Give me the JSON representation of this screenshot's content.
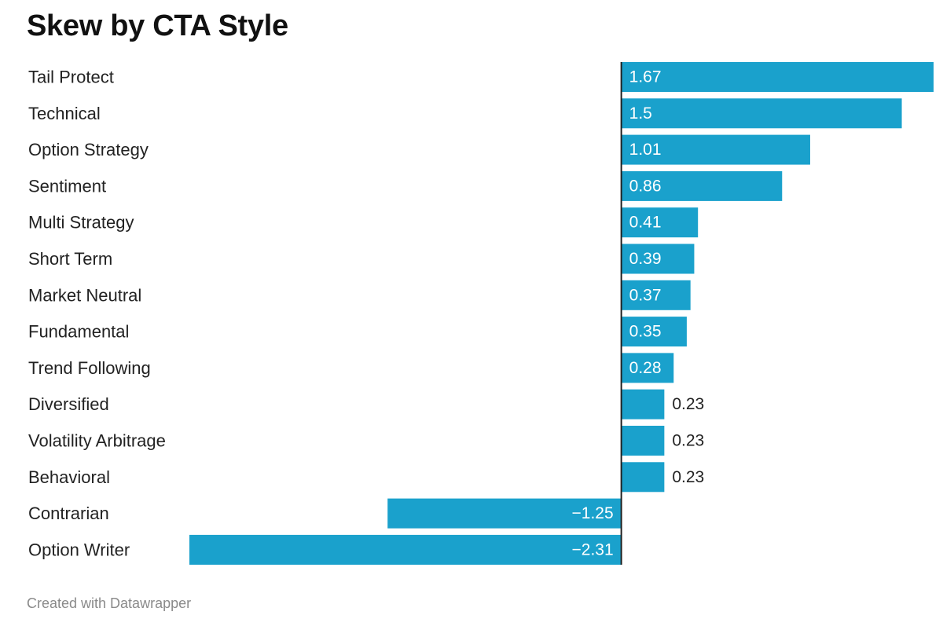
{
  "title": "Skew by CTA Style",
  "footer": "Created with Datawrapper",
  "colors": {
    "bar": "#1aa1cc",
    "axis": "#222222",
    "label_inside": "#ffffff",
    "label_outside": "#222222"
  },
  "chart_data": {
    "type": "bar",
    "orientation": "horizontal",
    "title": "Skew by CTA Style",
    "xlabel": "",
    "ylabel": "",
    "grid": false,
    "xlim": [
      -2.31,
      1.67
    ],
    "categories": [
      "Tail Protect",
      "Technical",
      "Option Strategy",
      "Sentiment",
      "Multi Strategy",
      "Short Term",
      "Market Neutral",
      "Fundamental",
      "Trend Following",
      "Diversified",
      "Volatility Arbitrage",
      "Behavioral",
      "Contrarian",
      "Option Writer"
    ],
    "values": [
      1.67,
      1.5,
      1.01,
      0.86,
      0.41,
      0.39,
      0.37,
      0.35,
      0.28,
      0.23,
      0.23,
      0.23,
      -1.25,
      -2.31
    ],
    "value_labels": [
      "1.67",
      "1.5",
      "1.01",
      "0.86",
      "0.41",
      "0.39",
      "0.37",
      "0.35",
      "0.28",
      "0.23",
      "0.23",
      "0.23",
      "−1.25",
      "−2.31"
    ]
  }
}
